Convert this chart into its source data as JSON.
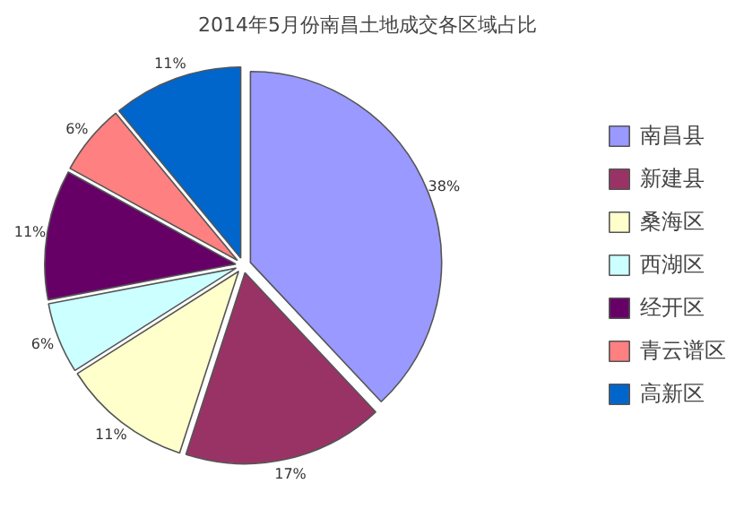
{
  "chart_data": {
    "type": "pie",
    "title": "2014年5月份南昌土地成交各区域占比",
    "categories": [
      "南昌县",
      "新建县",
      "桑海区",
      "西湖区",
      "经开区",
      "青云谱区",
      "高新区"
    ],
    "values": [
      38,
      17,
      11,
      6,
      11,
      6,
      11
    ],
    "colors": [
      "#9999ff",
      "#993366",
      "#ffffcc",
      "#ccffff",
      "#660066",
      "#ff8080",
      "#0066cc"
    ],
    "value_labels": [
      "38%",
      "17%",
      "11%",
      "6%",
      "11%",
      "6%",
      "11%"
    ],
    "legend": "right"
  }
}
